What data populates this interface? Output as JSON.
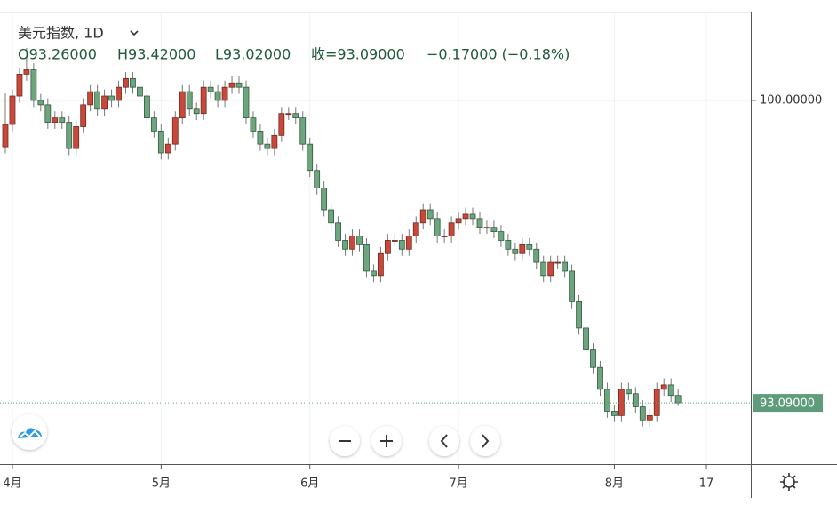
{
  "chart_data": {
    "type": "candlestick",
    "title": "美元指数, 1D",
    "ohlc_header": {
      "open": "O93.26000",
      "high": "H93.42000",
      "low": "L93.02000",
      "close": "收=93.09000",
      "change": "−0.17000 (−0.18%)"
    },
    "categories": [
      null,
      "4月",
      null,
      null,
      null,
      null,
      null,
      null,
      null,
      null,
      null,
      null,
      null,
      null,
      null,
      null,
      null,
      null,
      null,
      null,
      null,
      null,
      "5月",
      null,
      null,
      null,
      null,
      null,
      null,
      null,
      null,
      null,
      null,
      null,
      null,
      null,
      null,
      null,
      null,
      null,
      null,
      null,
      null,
      "6月",
      null,
      null,
      null,
      null,
      null,
      null,
      null,
      null,
      null,
      null,
      null,
      null,
      null,
      null,
      null,
      null,
      null,
      null,
      null,
      null,
      "7月",
      null,
      null,
      null,
      null,
      null,
      null,
      null,
      null,
      null,
      null,
      null,
      null,
      null,
      null,
      null,
      null,
      null,
      null,
      null,
      null,
      null,
      "8月",
      null,
      null,
      null,
      null,
      null,
      null,
      null,
      null,
      null,
      null,
      null,
      null,
      "17"
    ],
    "open": [
      98.94,
      99.45,
      100.1,
      100.6,
      100.7,
      100.0,
      99.9,
      99.5,
      99.6,
      99.5,
      98.9,
      99.4,
      99.9,
      100.2,
      99.8,
      100.1,
      100.0,
      100.3,
      100.5,
      100.3,
      100.1,
      99.6,
      99.3,
      98.8,
      99.0,
      99.6,
      100.2,
      99.8,
      99.7,
      100.3,
      100.2,
      100.0,
      100.3,
      100.4,
      100.3,
      99.6,
      99.3,
      99.0,
      98.9,
      99.2,
      99.7,
      99.7,
      99.6,
      99.0,
      98.4,
      98.0,
      97.5,
      97.2,
      96.8,
      96.6,
      96.9,
      96.7,
      96.1,
      96.0,
      96.5,
      96.8,
      96.8,
      96.6,
      96.9,
      97.2,
      97.5,
      97.3,
      96.9,
      96.9,
      97.2,
      97.3,
      97.4,
      97.3,
      97.1,
      97.1,
      97.0,
      96.8,
      96.6,
      96.5,
      96.7,
      96.6,
      96.3,
      96.0,
      96.3,
      96.3,
      96.1,
      95.4,
      94.8,
      94.3,
      93.9,
      93.4,
      92.9,
      92.8,
      93.4,
      93.3,
      93.0,
      92.7,
      92.8,
      93.4,
      93.5,
      93.26,
      null,
      null,
      null,
      null
    ],
    "high": [
      100.16,
      100.25,
      100.75,
      101.2,
      100.85,
      100.15,
      100.05,
      99.75,
      99.75,
      99.65,
      99.55,
      100.05,
      100.35,
      100.35,
      100.25,
      100.25,
      100.45,
      100.65,
      100.65,
      100.45,
      100.25,
      99.75,
      99.45,
      99.15,
      99.75,
      100.35,
      100.35,
      99.95,
      100.45,
      100.45,
      100.35,
      100.45,
      100.55,
      100.55,
      100.45,
      99.75,
      99.45,
      99.15,
      99.35,
      99.85,
      99.85,
      99.85,
      99.75,
      99.15,
      98.55,
      98.15,
      97.65,
      97.35,
      96.95,
      97.05,
      97.05,
      96.85,
      96.25,
      96.65,
      96.95,
      96.95,
      96.95,
      97.05,
      97.35,
      97.65,
      97.65,
      97.45,
      97.05,
      97.35,
      97.45,
      97.55,
      97.55,
      97.45,
      97.25,
      97.25,
      97.15,
      96.95,
      96.75,
      96.85,
      96.85,
      96.75,
      96.45,
      96.45,
      96.45,
      96.45,
      96.25,
      95.55,
      94.95,
      94.45,
      94.05,
      93.55,
      93.05,
      93.55,
      93.55,
      93.45,
      93.15,
      92.95,
      93.55,
      93.65,
      93.65,
      93.42,
      null,
      null,
      null,
      null
    ],
    "low": [
      98.79,
      99.3,
      99.95,
      100.45,
      99.85,
      99.75,
      99.35,
      99.35,
      99.35,
      98.75,
      98.75,
      99.25,
      99.75,
      99.65,
      99.65,
      99.85,
      99.85,
      100.15,
      100.15,
      99.95,
      99.45,
      99.15,
      98.65,
      98.65,
      98.85,
      99.45,
      99.65,
      99.55,
      99.55,
      100.05,
      99.85,
      99.85,
      100.15,
      100.15,
      99.45,
      99.15,
      98.85,
      98.75,
      98.75,
      99.05,
      99.55,
      99.45,
      98.85,
      98.25,
      97.85,
      97.35,
      97.05,
      96.65,
      96.45,
      96.45,
      96.55,
      95.95,
      95.85,
      95.85,
      96.35,
      96.65,
      96.45,
      96.45,
      96.75,
      97.05,
      97.15,
      96.75,
      96.75,
      96.75,
      97.05,
      97.15,
      97.15,
      96.95,
      96.95,
      96.85,
      96.65,
      96.45,
      96.35,
      96.35,
      96.45,
      96.15,
      95.85,
      95.85,
      96.15,
      95.95,
      95.25,
      94.65,
      94.15,
      93.75,
      93.25,
      92.75,
      92.65,
      92.65,
      93.15,
      92.85,
      92.55,
      92.55,
      92.65,
      93.25,
      93.11,
      93.02,
      null,
      null,
      null,
      null
    ],
    "close": [
      99.45,
      100.1,
      100.6,
      100.7,
      100.0,
      99.9,
      99.5,
      99.6,
      99.5,
      98.9,
      99.4,
      99.9,
      100.2,
      99.8,
      100.1,
      100.0,
      100.3,
      100.5,
      100.3,
      100.1,
      99.6,
      99.3,
      98.8,
      99.0,
      99.6,
      100.2,
      99.8,
      99.7,
      100.3,
      100.2,
      100.0,
      100.3,
      100.4,
      100.3,
      99.6,
      99.3,
      99.0,
      98.9,
      99.2,
      99.7,
      99.7,
      99.6,
      99.0,
      98.4,
      98.0,
      97.5,
      97.2,
      96.8,
      96.6,
      96.9,
      96.7,
      96.1,
      96.0,
      96.5,
      96.8,
      96.8,
      96.6,
      96.9,
      97.2,
      97.5,
      97.3,
      96.9,
      96.9,
      97.2,
      97.3,
      97.4,
      97.3,
      97.1,
      97.1,
      97.0,
      96.8,
      96.6,
      96.5,
      96.7,
      96.6,
      96.3,
      96.0,
      96.3,
      96.3,
      96.1,
      95.4,
      94.8,
      94.3,
      93.9,
      93.4,
      92.9,
      92.8,
      93.4,
      93.3,
      93.0,
      92.7,
      92.8,
      93.4,
      93.5,
      93.26,
      93.09,
      null,
      null,
      null,
      null
    ],
    "ylim": [
      91.69,
      102.01
    ],
    "yticks": [
      {
        "value": 100,
        "label": "100.00000"
      }
    ],
    "last_price": {
      "value": 93.09,
      "label": "93.09000"
    },
    "up_color": "#c9483a",
    "down_color": "#6fa57e",
    "grid": true
  }
}
